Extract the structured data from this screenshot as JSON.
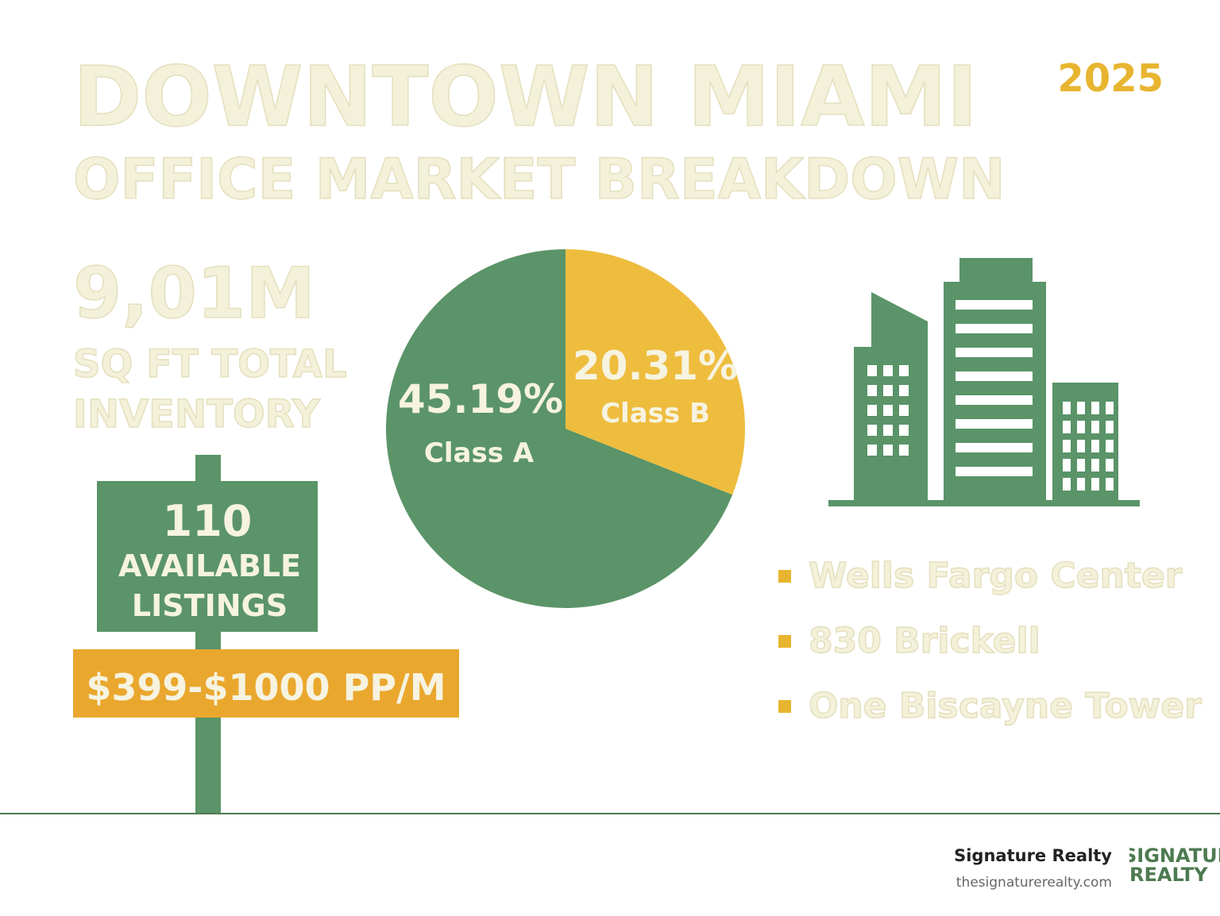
{
  "header": {
    "title_line1": "DOWNTOWN MIAMI",
    "title_line2": "OFFICE MARKET BREAKDOWN",
    "year": "2025"
  },
  "inventory": {
    "value": "9,01M",
    "line1": "SQ FT TOTAL",
    "line2": "INVENTORY"
  },
  "sign": {
    "count": "110",
    "line1": "AVAILABLE",
    "line2": "LISTINGS",
    "price": "$399-$1000 PP/M"
  },
  "chart_data": {
    "type": "pie",
    "categories": [
      "Class A",
      "Class B"
    ],
    "values": [
      45.19,
      20.31
    ],
    "value_labels": [
      "45.19%",
      "20.31%"
    ],
    "colors": [
      "#5a9468",
      "#eebd3e"
    ]
  },
  "buildings": [
    "Wells Fargo Center",
    "830 Brickell",
    "One Biscayne Tower"
  ],
  "footer": {
    "company": "Signature Realty",
    "url": "thesignaturerealty.com",
    "logo_line1": "SIGNATURE",
    "logo_line2": "REALTY"
  }
}
